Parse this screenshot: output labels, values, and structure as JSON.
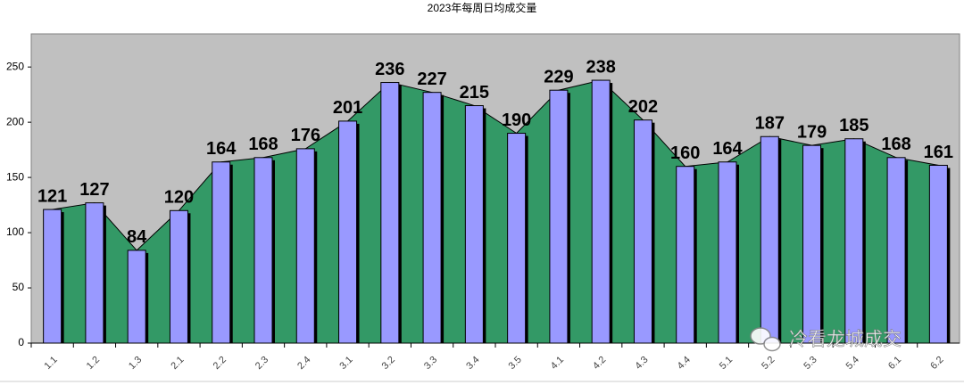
{
  "chart_data": {
    "type": "bar",
    "title": "2023年每周日均成交量",
    "categories": [
      "1.1",
      "1.2",
      "1.3",
      "2.1",
      "2.2",
      "2.3",
      "2.4",
      "3.1",
      "3.2",
      "3.3",
      "3.4",
      "3.5",
      "4.1",
      "4.2",
      "4.3",
      "4.4",
      "5.1",
      "5.2",
      "5.3",
      "5.4",
      "6.1",
      "6.2"
    ],
    "values": [
      121,
      127,
      84,
      120,
      164,
      168,
      176,
      201,
      236,
      227,
      215,
      190,
      229,
      238,
      202,
      160,
      164,
      187,
      179,
      185,
      168,
      161
    ],
    "color": "#9999ff",
    "area_color": "#339966",
    "background": "#c0c0c0",
    "ylim": [
      0,
      280
    ],
    "yticks": [
      0,
      50,
      100,
      150,
      200,
      250
    ],
    "grid": false,
    "watermark": "冷看龙城成交"
  }
}
